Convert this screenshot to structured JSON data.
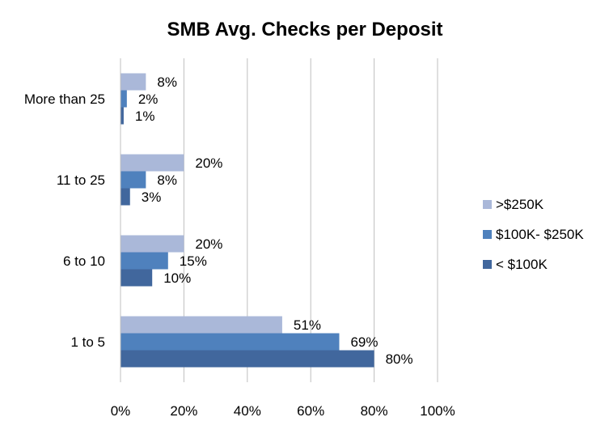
{
  "chart_data": {
    "type": "bar",
    "orientation": "horizontal",
    "title": "SMB Avg. Checks per Deposit",
    "xlabel": "",
    "ylabel": "",
    "categories": [
      "1 to 5",
      "6 to 10",
      "11 to 25",
      "More than 25"
    ],
    "series": [
      {
        "name": ">$250K",
        "values": [
          51,
          20,
          20,
          8
        ],
        "labels": [
          "51%",
          "20%",
          "20%",
          "8%"
        ],
        "color": "#aab8d9"
      },
      {
        "name": "$100K- $250K",
        "values": [
          69,
          15,
          8,
          2
        ],
        "labels": [
          "69%",
          "15%",
          "8%",
          "2%"
        ],
        "color": "#4f81bd"
      },
      {
        "name": "< $100K",
        "values": [
          80,
          10,
          3,
          1
        ],
        "labels": [
          "80%",
          "10%",
          "3%",
          "1%"
        ],
        "color": "#41679d"
      }
    ],
    "xlim": [
      0,
      100
    ],
    "xticks": [
      0,
      20,
      40,
      60,
      80,
      100
    ],
    "xtick_labels": [
      "0%",
      "20%",
      "40%",
      "60%",
      "80%",
      "100%"
    ],
    "grid": true,
    "legend_position": "right"
  }
}
